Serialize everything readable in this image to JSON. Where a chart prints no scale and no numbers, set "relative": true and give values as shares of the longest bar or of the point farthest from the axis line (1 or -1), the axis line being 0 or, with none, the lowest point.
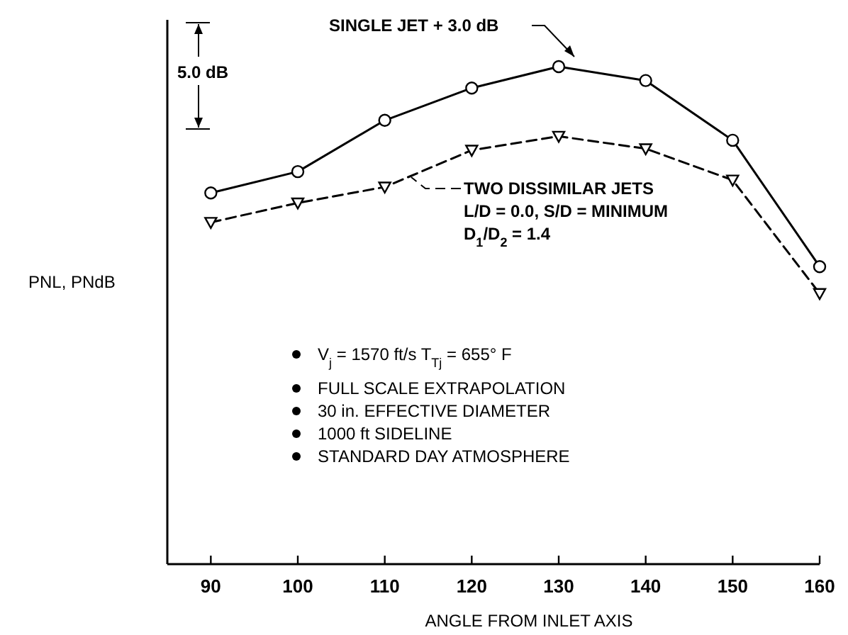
{
  "chart_data": {
    "type": "line",
    "relative": true,
    "xlabel": "ANGLE FROM INLET AXIS",
    "ylabel": "PNL, PNdB",
    "x": [
      90,
      100,
      110,
      120,
      130,
      140,
      150,
      160
    ],
    "xlim": [
      85,
      160
    ],
    "xticks": [
      90,
      100,
      110,
      120,
      130,
      140,
      150,
      160
    ],
    "series": [
      {
        "name": "SINGLE JET + 3.0 dB",
        "color": "#000000",
        "marker": "circle",
        "line_style": "solid",
        "values": [
          0.746,
          0.789,
          0.892,
          0.957,
          1,
          0.972,
          0.852,
          0.598
        ]
      },
      {
        "name": "TWO DISSIMILAR JETS",
        "color": "#000000",
        "marker": "triangle",
        "line_style": "dashed",
        "values": [
          0.687,
          0.726,
          0.758,
          0.832,
          0.86,
          0.835,
          0.772,
          0.544
        ]
      }
    ],
    "annotations": [
      "5.0 dB",
      "L/D = 0.0, S/D = MINIMUM",
      "D$_{1}$/D$_{2}$ = 1.4",
      "V$_{j}$ = 1570 ft/s T$_{Tj}$ = 655° F",
      "FULL SCALE EXTRAPOLATION",
      "30 in. EFFECTIVE DIAMETER",
      "1000 ft SIDELINE",
      "STANDARD DAY ATMOSPHERE"
    ],
    "tick_labels": "x"
  }
}
